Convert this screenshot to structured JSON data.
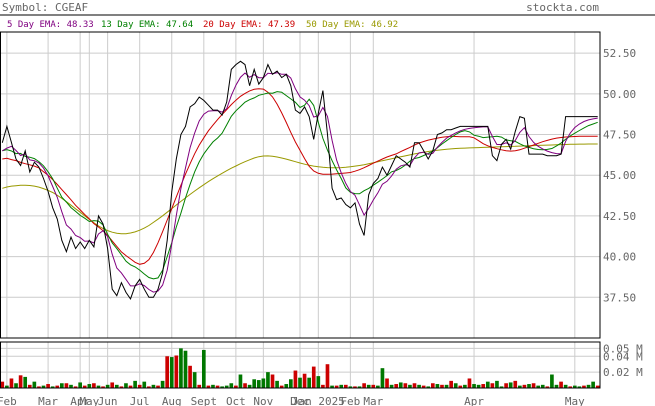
{
  "header": {
    "symbol_label": "Symbol: CGEAF",
    "site": "stockta.com"
  },
  "legend": [
    {
      "text": "5 Day EMA: 48.33",
      "color": "#800080"
    },
    {
      "text": "13 Day EMA: 47.64",
      "color": "#008000"
    },
    {
      "text": "20 Day EMA: 47.39",
      "color": "#cc0000"
    },
    {
      "text": "50 Day EMA: 46.92",
      "color": "#999900"
    }
  ],
  "chart_data": {
    "type": "line",
    "title": "Symbol: CGEAF",
    "ylim": [
      35.0,
      53.8
    ],
    "y_ticks": [
      37.5,
      40.0,
      42.5,
      45.0,
      47.5,
      50.0,
      52.5
    ],
    "y_tick_labels": [
      "37.50",
      "40.00",
      "42.50",
      "45.00",
      "47.50",
      "50.00",
      "52.50"
    ],
    "x_ticks": [
      {
        "i": 1,
        "label": "Feb"
      },
      {
        "i": 10,
        "label": "Mar"
      },
      {
        "i": 17,
        "label": "Apr"
      },
      {
        "i": 19,
        "label": "May"
      },
      {
        "i": 23,
        "label": "Jun"
      },
      {
        "i": 30,
        "label": "Jul"
      },
      {
        "i": 37,
        "label": "Aug"
      },
      {
        "i": 44,
        "label": "Sept"
      },
      {
        "i": 51,
        "label": "Oct"
      },
      {
        "i": 57,
        "label": "Nov"
      },
      {
        "i": 65,
        "label": "Dec"
      },
      {
        "i": 69,
        "label": "Jan 2025"
      },
      {
        "i": 76,
        "label": "Feb"
      },
      {
        "i": 81,
        "label": "Mar"
      },
      {
        "i": 103,
        "label": "Apr"
      },
      {
        "i": 125,
        "label": "May"
      }
    ],
    "x_count": 131,
    "series": [
      {
        "name": "Price",
        "color": "#000000",
        "values": [
          47.0,
          48.0,
          47.0,
          46.0,
          45.6,
          46.5,
          45.2,
          45.8,
          45.5,
          44.8,
          44.0,
          43.0,
          42.3,
          41.0,
          40.3,
          41.2,
          40.5,
          40.9,
          40.5,
          41.0,
          40.6,
          42.5,
          42.0,
          40.5,
          38.0,
          37.6,
          38.4,
          37.8,
          37.4,
          38.2,
          38.6,
          38.0,
          37.5,
          37.5,
          38.0,
          39.0,
          41.0,
          44.0,
          46.0,
          47.5,
          48.0,
          49.2,
          49.4,
          49.8,
          49.6,
          49.3,
          49.0,
          49.0,
          48.7,
          49.5,
          51.5,
          51.8,
          52.0,
          51.8,
          50.5,
          51.5,
          50.6,
          51.0,
          51.8,
          51.2,
          51.4,
          51.0,
          51.2,
          50.5,
          49.0,
          48.8,
          49.2,
          48.6,
          47.2,
          48.8,
          50.2,
          47.5,
          44.2,
          43.5,
          43.6,
          43.2,
          43.0,
          43.3,
          42.0,
          41.3,
          43.8,
          44.5,
          44.8,
          45.5,
          45.0,
          45.6,
          46.2,
          46.0,
          45.8,
          45.5,
          47.0,
          47.0,
          46.5,
          46.0,
          46.5,
          47.5,
          47.6,
          47.8,
          47.8,
          47.9,
          48.0,
          48.0,
          48.0,
          48.0,
          48.0,
          48.0,
          48.0,
          46.2,
          45.9,
          46.9,
          47.2,
          46.6,
          47.7,
          48.6,
          48.5,
          46.3,
          46.3,
          46.3,
          46.3,
          46.2,
          46.2,
          46.2,
          46.3,
          48.6,
          48.6,
          48.6,
          48.6,
          48.6,
          48.6,
          48.6,
          48.6
        ]
      },
      {
        "name": "5 Day EMA",
        "color": "#800080",
        "values": [
          46.5,
          46.67,
          46.78,
          46.52,
          46.21,
          46.31,
          45.94,
          45.89,
          45.76,
          45.44,
          44.96,
          44.31,
          43.64,
          42.76,
          41.94,
          41.69,
          41.3,
          41.17,
          40.94,
          40.96,
          40.84,
          41.39,
          41.59,
          41.23,
          40.15,
          39.3,
          39.0,
          38.6,
          38.2,
          38.2,
          38.33,
          38.22,
          37.98,
          37.82,
          37.88,
          38.25,
          39.17,
          40.78,
          42.52,
          44.18,
          45.45,
          46.7,
          47.6,
          48.33,
          48.75,
          48.94,
          48.96,
          48.97,
          48.88,
          49.09,
          49.89,
          50.53,
          51.02,
          51.28,
          51.02,
          51.18,
          50.99,
          50.99,
          51.26,
          51.24,
          51.3,
          51.2,
          51.2,
          50.97,
          50.31,
          49.81,
          49.61,
          49.27,
          48.58,
          48.65,
          49.17,
          48.61,
          47.14,
          45.93,
          45.15,
          44.5,
          44.0,
          43.77,
          43.18,
          42.55,
          42.97,
          43.48,
          43.92,
          44.45,
          44.63,
          44.96,
          45.37,
          45.58,
          45.65,
          45.6,
          46.07,
          46.38,
          46.42,
          46.28,
          46.35,
          46.73,
          47.02,
          47.28,
          47.45,
          47.6,
          47.73,
          47.82,
          47.88,
          47.92,
          47.95,
          47.97,
          47.98,
          47.38,
          46.89,
          46.89,
          46.99,
          46.86,
          47.14,
          47.63,
          47.92,
          47.38,
          47.02,
          46.78,
          46.62,
          46.48,
          46.39,
          46.33,
          46.32,
          47.08,
          47.59,
          47.93,
          48.15,
          48.3,
          48.4,
          48.46,
          48.51
        ]
      },
      {
        "name": "13 Day EMA",
        "color": "#008000",
        "values": [
          46.5,
          46.57,
          46.49,
          46.33,
          46.34,
          46.16,
          46.11,
          46.02,
          45.84,
          45.58,
          45.21,
          44.79,
          44.2,
          43.65,
          43.35,
          43.01,
          42.78,
          42.53,
          42.36,
          42.16,
          42.21,
          42.18,
          41.94,
          41.38,
          40.84,
          40.49,
          40.11,
          39.72,
          39.5,
          39.37,
          39.17,
          38.93,
          38.72,
          38.63,
          38.69,
          39.16,
          40.0,
          40.87,
          41.82,
          42.67,
          43.61,
          44.44,
          45.21,
          45.82,
          46.31,
          46.69,
          47.05,
          47.29,
          47.58,
          48.09,
          48.62,
          48.96,
          49.22,
          49.49,
          49.64,
          49.75,
          49.91,
          49.98,
          50.05,
          50.04,
          50.14,
          50.1,
          49.89,
          49.69,
          49.48,
          49.16,
          49.3,
          49.67,
          49.29,
          48.25,
          47.26,
          46.54,
          45.89,
          45.33,
          44.8,
          44.22,
          43.95,
          43.87,
          43.86,
          44.05,
          44.19,
          44.39,
          44.57,
          44.77,
          44.98,
          45.21,
          45.29,
          45.43,
          45.62,
          45.87,
          46.03,
          46.09,
          46.21,
          46.34,
          46.48,
          46.69,
          46.92,
          47.12,
          47.32,
          47.5,
          47.66,
          47.74,
          47.66,
          47.46,
          47.4,
          47.31,
          47.34,
          47.37,
          47.4,
          47.34,
          47.17,
          47.12,
          47.08,
          46.93,
          46.8,
          46.71,
          46.63,
          46.58,
          46.57,
          46.59,
          46.64,
          46.8,
          46.98,
          47.21,
          47.41,
          47.58,
          47.75,
          47.91,
          48.05,
          48.15,
          48.25
        ]
      },
      {
        "name": "20 Day EMA",
        "color": "#cc0000",
        "values": [
          46.0,
          46.04,
          45.96,
          45.9,
          45.79,
          45.71,
          45.64,
          45.56,
          45.45,
          45.22,
          45.0,
          44.73,
          44.43,
          44.12,
          43.81,
          43.49,
          43.15,
          42.87,
          42.59,
          42.32,
          42.03,
          41.82,
          41.59,
          41.31,
          40.96,
          40.63,
          40.29,
          40.06,
          39.86,
          39.65,
          39.53,
          39.59,
          39.81,
          40.25,
          40.85,
          41.53,
          42.25,
          42.95,
          43.67,
          44.38,
          45.07,
          45.71,
          46.32,
          46.85,
          47.3,
          47.73,
          48.08,
          48.42,
          48.73,
          49.03,
          49.34,
          49.61,
          49.85,
          50.03,
          50.18,
          50.28,
          50.31,
          50.29,
          50.1,
          49.81,
          49.37,
          48.83,
          48.24,
          47.63,
          47.04,
          46.53,
          46.02,
          45.55,
          45.26,
          45.12,
          45.06,
          45.06,
          45.07,
          45.09,
          45.11,
          45.14,
          45.17,
          45.25,
          45.34,
          45.46,
          45.6,
          45.74,
          45.87,
          46.0,
          46.12,
          46.22,
          46.31,
          46.45,
          46.58,
          46.71,
          46.85,
          46.98,
          47.07,
          47.16,
          47.22,
          47.28,
          47.33,
          47.37,
          47.39,
          47.38,
          47.37,
          47.37,
          47.36,
          47.3,
          47.12,
          46.94,
          46.81,
          46.71,
          46.63,
          46.56,
          46.5,
          46.48,
          46.51,
          46.56,
          46.66,
          46.76,
          46.86,
          46.96,
          47.06,
          47.14,
          47.22,
          47.28,
          47.32,
          47.35,
          47.37,
          47.38,
          47.39,
          47.39,
          47.39,
          47.39,
          47.39
        ]
      },
      {
        "name": "50 Day EMA",
        "color": "#999900",
        "values": [
          44.2,
          44.28,
          44.33,
          44.36,
          44.38,
          44.38,
          44.37,
          44.33,
          44.27,
          44.18,
          44.07,
          43.94,
          43.77,
          43.58,
          43.38,
          43.16,
          42.94,
          42.73,
          42.5,
          42.29,
          42.08,
          41.89,
          41.73,
          41.6,
          41.5,
          41.44,
          41.41,
          41.41,
          41.45,
          41.52,
          41.62,
          41.75,
          41.91,
          42.1,
          42.3,
          42.51,
          42.73,
          42.95,
          43.17,
          43.39,
          43.61,
          43.82,
          44.03,
          44.23,
          44.42,
          44.61,
          44.79,
          44.96,
          45.12,
          45.28,
          45.43,
          45.57,
          45.71,
          45.83,
          45.95,
          46.06,
          46.14,
          46.18,
          46.19,
          46.17,
          46.12,
          46.06,
          45.99,
          45.91,
          45.83,
          45.75,
          45.68,
          45.61,
          45.56,
          45.52,
          45.49,
          45.47,
          45.46,
          45.46,
          45.47,
          45.49,
          45.52,
          45.56,
          45.6,
          45.65,
          45.71,
          45.77,
          45.83,
          45.89,
          45.95,
          46.01,
          46.07,
          46.13,
          46.19,
          46.25,
          46.31,
          46.36,
          46.41,
          46.46,
          46.5,
          46.54,
          46.57,
          46.6,
          46.62,
          46.64,
          46.66,
          46.67,
          46.68,
          46.69,
          46.7,
          46.71,
          46.72,
          46.73,
          46.74,
          46.75,
          46.76,
          46.77,
          46.78,
          46.79,
          46.8,
          46.81,
          46.82,
          46.83,
          46.84,
          46.85,
          46.86,
          46.87,
          46.88,
          46.89,
          46.9,
          46.9,
          46.91,
          46.91,
          46.92,
          46.92,
          46.92
        ]
      }
    ],
    "volume": {
      "y_ticks": [
        0.02,
        0.04,
        0.05
      ],
      "y_tick_labels": [
        "0.02 M",
        "0.04 M",
        "0.05 M"
      ],
      "ylim": [
        0,
        0.058
      ],
      "values": [
        0.008,
        0.003,
        0.012,
        0.006,
        0.016,
        0.014,
        0.004,
        0.008,
        0.002,
        0.003,
        0.005,
        0.002,
        0.003,
        0.006,
        0.006,
        0.004,
        0.002,
        0.007,
        0.003,
        0.005,
        0.006,
        0.003,
        0.002,
        0.004,
        0.007,
        0.004,
        0.002,
        0.006,
        0.003,
        0.009,
        0.004,
        0.008,
        0.002,
        0.004,
        0.003,
        0.009,
        0.04,
        0.039,
        0.041,
        0.05,
        0.047,
        0.028,
        0.02,
        0.004,
        0.048,
        0.003,
        0.004,
        0.003,
        0.002,
        0.003,
        0.006,
        0.003,
        0.017,
        0.006,
        0.004,
        0.011,
        0.01,
        0.012,
        0.02,
        0.017,
        0.009,
        0.003,
        0.005,
        0.011,
        0.022,
        0.013,
        0.018,
        0.013,
        0.027,
        0.015,
        0.004,
        0.03,
        0.003,
        0.003,
        0.004,
        0.004,
        0.002,
        0.002,
        0.002,
        0.006,
        0.004,
        0.004,
        0.003,
        0.025,
        0.012,
        0.004,
        0.005,
        0.007,
        0.006,
        0.004,
        0.006,
        0.004,
        0.003,
        0.002,
        0.006,
        0.005,
        0.004,
        0.004,
        0.009,
        0.006,
        0.003,
        0.004,
        0.012,
        0.005,
        0.004,
        0.005,
        0.008,
        0.006,
        0.009,
        0.002,
        0.006,
        0.007,
        0.009,
        0.003,
        0.004,
        0.005,
        0.006,
        0.003,
        0.004,
        0.002,
        0.017,
        0.004,
        0.008,
        0.004,
        0.002,
        0.003,
        0.002,
        0.003,
        0.004,
        0.008,
        0.003
      ],
      "colors": [
        "r",
        "g",
        "r",
        "g",
        "r",
        "g",
        "r",
        "g",
        "r",
        "g",
        "r",
        "g",
        "r",
        "g",
        "r",
        "g",
        "r",
        "g",
        "r",
        "g",
        "r",
        "g",
        "r",
        "g",
        "r",
        "g",
        "r",
        "g",
        "r",
        "g",
        "r",
        "g",
        "r",
        "g",
        "r",
        "g",
        "r",
        "g",
        "r",
        "g",
        "g",
        "r",
        "g",
        "r",
        "g",
        "r",
        "g",
        "r",
        "g",
        "g",
        "g",
        "r",
        "g",
        "r",
        "g",
        "g",
        "g",
        "g",
        "g",
        "r",
        "g",
        "r",
        "g",
        "g",
        "r",
        "g",
        "r",
        "g",
        "r",
        "g",
        "r",
        "r",
        "g",
        "r",
        "g",
        "r",
        "g",
        "r",
        "g",
        "r",
        "g",
        "r",
        "g",
        "g",
        "r",
        "g",
        "r",
        "g",
        "r",
        "g",
        "r",
        "g",
        "r",
        "g",
        "r",
        "g",
        "r",
        "g",
        "r",
        "g",
        "r",
        "g",
        "r",
        "g",
        "g",
        "r",
        "g",
        "r",
        "g",
        "g",
        "r",
        "g",
        "r",
        "g",
        "r",
        "g",
        "r",
        "g",
        "g",
        "r",
        "g",
        "g",
        "r",
        "g",
        "r",
        "g",
        "g",
        "r",
        "g",
        "g",
        "r"
      ]
    }
  }
}
